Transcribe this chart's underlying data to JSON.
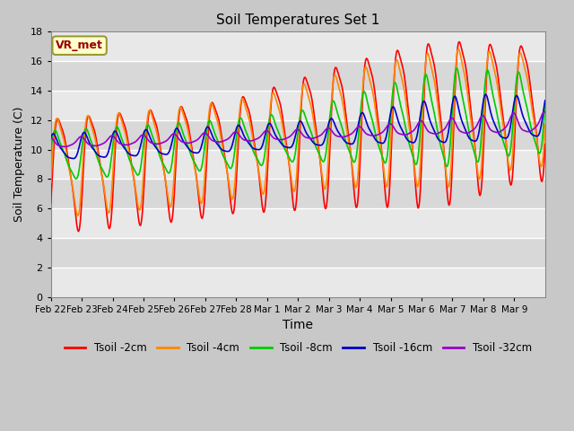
{
  "title": "Soil Temperatures Set 1",
  "xlabel": "Time",
  "ylabel": "Soil Temperature (C)",
  "ylim": [
    0,
    18
  ],
  "yticks": [
    0,
    2,
    4,
    6,
    8,
    10,
    12,
    14,
    16,
    18
  ],
  "annotation_text": "VR_met",
  "annotation_bg": "#ffffcc",
  "annotation_border": "#999933",
  "colors": {
    "Tsoil -2cm": "#ff0000",
    "Tsoil -4cm": "#ff8800",
    "Tsoil -8cm": "#00cc00",
    "Tsoil -16cm": "#0000cc",
    "Tsoil -32cm": "#9900cc"
  },
  "legend_labels": [
    "Tsoil -2cm",
    "Tsoil -4cm",
    "Tsoil -8cm",
    "Tsoil -16cm",
    "Tsoil -32cm"
  ],
  "xtick_labels": [
    "Feb 22",
    "Feb 23",
    "Feb 24",
    "Feb 25",
    "Feb 26",
    "Feb 27",
    "Feb 28",
    "Mar 1",
    "Mar 2",
    "Mar 3",
    "Mar 4",
    "Mar 5",
    "Mar 6",
    "Mar 7",
    "Mar 8",
    "Mar 9"
  ],
  "figure_bg": "#c8c8c8",
  "plot_bg_light": "#e8e8e8",
  "plot_bg_dark": "#d8d8d8",
  "grid_color": "#ffffff",
  "figsize": [
    6.4,
    4.8
  ],
  "dpi": 100
}
